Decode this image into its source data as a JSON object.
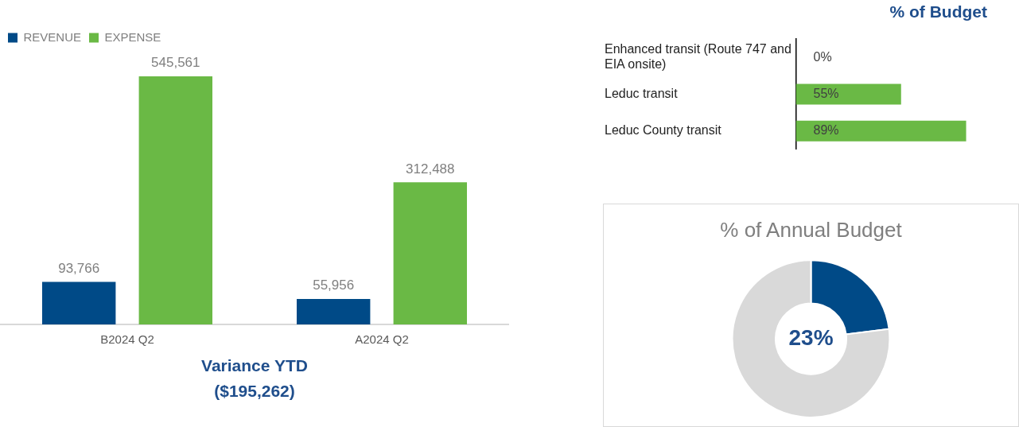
{
  "chart_data": [
    {
      "type": "bar",
      "categories": [
        "B2024 Q2",
        "A2024 Q2"
      ],
      "series": [
        {
          "name": "REVENUE",
          "color": "#004a87",
          "values": [
            93766,
            55956
          ],
          "value_labels": [
            "93,766",
            "55,956"
          ]
        },
        {
          "name": "EXPENSE",
          "color": "#6ab945",
          "values": [
            545561,
            312488
          ],
          "value_labels": [
            "545,561",
            "312,488"
          ]
        }
      ],
      "legend": "top left",
      "annotations": [
        "Variance YTD",
        "($195,262)"
      ]
    },
    {
      "type": "bar",
      "orientation": "horizontal",
      "title": "% of Budget",
      "categories": [
        "Enhanced transit (Route 747 and EIA onsite)",
        "Leduc transit",
        "Leduc County transit"
      ],
      "values": [
        0,
        55,
        89
      ],
      "value_labels": [
        "0%",
        "55%",
        "89%"
      ],
      "color": "#6ab945",
      "tick_labels": "y",
      "legend": false
    },
    {
      "type": "donut",
      "title": "% of Annual Budget",
      "categories": [
        null,
        null
      ],
      "values": [
        23,
        77
      ],
      "colors": [
        "#004a87",
        "#d9d9d9"
      ],
      "legend": false,
      "annotations": [
        "23%"
      ]
    }
  ]
}
